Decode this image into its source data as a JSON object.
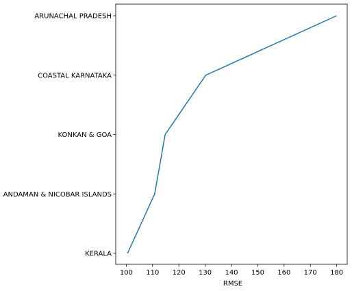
{
  "chart_data": {
    "type": "line",
    "title": "",
    "xlabel": "RMSE",
    "ylabel": "",
    "xlim": [
      96.0,
      184.0
    ],
    "x_ticks": [
      100,
      110,
      120,
      130,
      140,
      150,
      160,
      170,
      180
    ],
    "categories": [
      "KERALA",
      "ANDAMAN & NICOBAR ISLANDS",
      "KONKAN & GOA",
      "COASTAL KARNATAKA",
      "ARUNACHAL PRADESH"
    ],
    "x": [
      100.5,
      110.8,
      114.8,
      130.2,
      180.0
    ],
    "grid": false,
    "legend": "none",
    "color": "#1f77b4"
  }
}
